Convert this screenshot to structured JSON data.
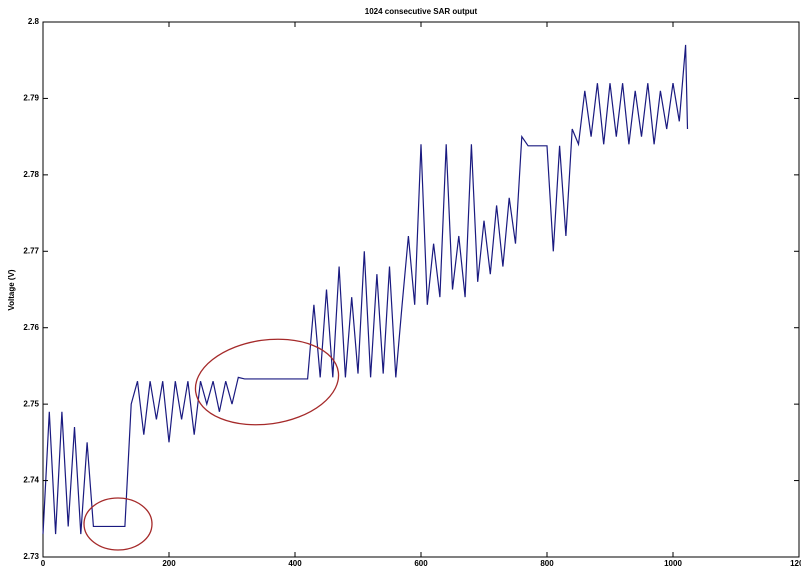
{
  "chart_data": {
    "type": "line",
    "title": "1024 consecutive SAR output",
    "y_label": "Voltage (V)",
    "x": [
      0,
      10,
      20,
      30,
      40,
      50,
      60,
      70,
      80,
      90,
      100,
      110,
      120,
      130,
      140,
      150,
      160,
      170,
      180,
      190,
      200,
      210,
      220,
      230,
      240,
      250,
      260,
      270,
      280,
      290,
      300,
      310,
      320,
      330,
      340,
      350,
      360,
      370,
      380,
      390,
      400,
      410,
      420,
      430,
      440,
      450,
      460,
      470,
      480,
      490,
      500,
      510,
      520,
      530,
      540,
      550,
      560,
      570,
      580,
      590,
      600,
      610,
      620,
      630,
      640,
      650,
      660,
      670,
      680,
      690,
      700,
      710,
      720,
      730,
      740,
      750,
      760,
      770,
      780,
      790,
      800,
      810,
      820,
      830,
      840,
      850,
      860,
      870,
      880,
      890,
      900,
      910,
      920,
      930,
      940,
      950,
      960,
      970,
      980,
      990,
      1000,
      1010,
      1020,
      1023
    ],
    "series": [
      {
        "name": "SAR output",
        "color": "#1a1a80",
        "values": [
          2.733,
          2.749,
          2.733,
          2.749,
          2.734,
          2.747,
          2.733,
          2.745,
          2.734,
          2.734,
          2.734,
          2.734,
          2.734,
          2.734,
          2.75,
          2.753,
          2.746,
          2.753,
          2.748,
          2.753,
          2.745,
          2.753,
          2.748,
          2.753,
          2.746,
          2.753,
          2.75,
          2.753,
          2.749,
          2.753,
          2.75,
          2.7535,
          2.7533,
          2.7533,
          2.7533,
          2.7533,
          2.7533,
          2.7533,
          2.7533,
          2.7533,
          2.7533,
          2.7533,
          2.7533,
          2.763,
          2.7535,
          2.765,
          2.7535,
          2.768,
          2.7535,
          2.764,
          2.754,
          2.77,
          2.7535,
          2.767,
          2.754,
          2.768,
          2.7535,
          2.763,
          2.772,
          2.763,
          2.784,
          2.763,
          2.771,
          2.764,
          2.784,
          2.765,
          2.772,
          2.764,
          2.784,
          2.766,
          2.774,
          2.767,
          2.776,
          2.768,
          2.777,
          2.771,
          2.785,
          2.7838,
          2.7838,
          2.7838,
          2.7838,
          2.77,
          2.7838,
          2.772,
          2.786,
          2.784,
          2.791,
          2.785,
          2.792,
          2.784,
          2.792,
          2.785,
          2.792,
          2.784,
          2.791,
          2.785,
          2.792,
          2.784,
          2.791,
          2.786,
          2.792,
          2.787,
          2.797,
          2.786
        ]
      }
    ],
    "xlim": [
      0,
      1200
    ],
    "xticks": [
      0,
      200,
      400,
      600,
      800,
      1000,
      1200
    ],
    "ylim": [
      2.73,
      2.8
    ],
    "yticks": [
      2.73,
      2.74,
      2.75,
      2.76,
      2.77,
      2.78,
      2.79,
      2.8
    ]
  }
}
